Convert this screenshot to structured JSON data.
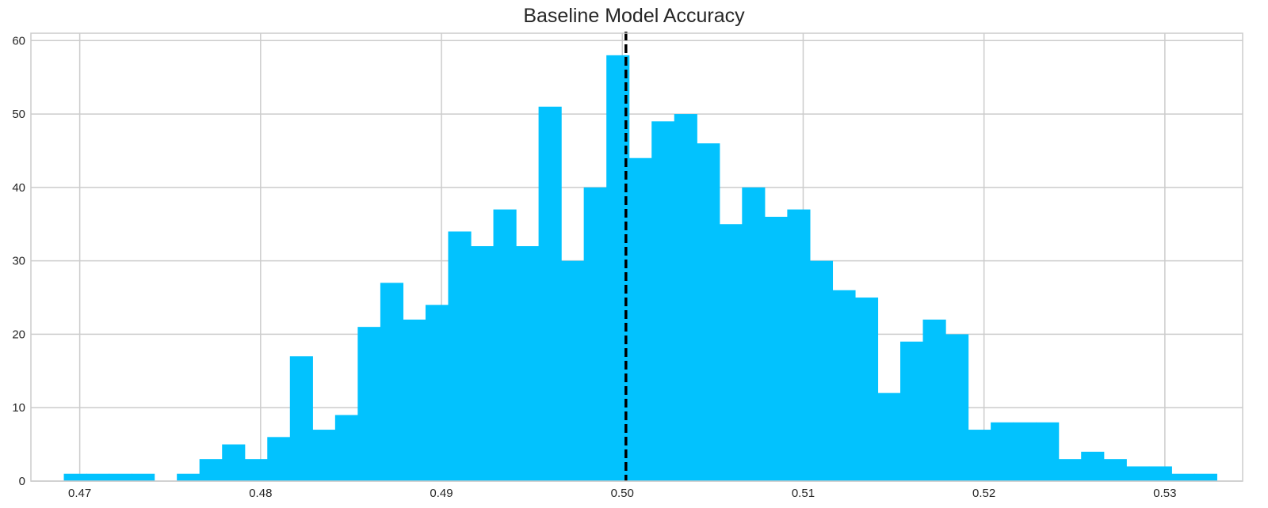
{
  "chart_data": {
    "type": "bar",
    "title": "Baseline Model Accuracy",
    "xlabel": "",
    "ylabel": "",
    "xlim": [
      0.4673,
      0.5343
    ],
    "ylim": [
      0,
      61
    ],
    "x_ticks": [
      "0.47",
      "0.48",
      "0.49",
      "0.50",
      "0.51",
      "0.52",
      "0.53"
    ],
    "x_tick_values": [
      0.47,
      0.48,
      0.49,
      0.5,
      0.51,
      0.52,
      0.53
    ],
    "y_ticks": [
      "0",
      "10",
      "20",
      "30",
      "40",
      "50",
      "60"
    ],
    "y_tick_values": [
      0,
      10,
      20,
      30,
      40,
      50,
      60
    ],
    "grid": true,
    "bin_start": 0.46912,
    "bin_width": 0.00125,
    "counts": [
      1,
      1,
      1,
      1,
      0,
      1,
      3,
      5,
      3,
      6,
      17,
      7,
      9,
      21,
      27,
      22,
      24,
      34,
      32,
      37,
      32,
      51,
      30,
      40,
      58,
      44,
      49,
      50,
      46,
      35,
      40,
      36,
      37,
      30,
      26,
      25,
      12,
      19,
      22,
      20,
      7,
      8,
      8,
      8,
      3,
      4,
      3,
      2,
      2,
      1,
      1
    ],
    "mean_line": 0.5002,
    "colors": {
      "bars": "#02c2fe",
      "mean_line": "#000000",
      "grid": "#cccccc"
    }
  }
}
